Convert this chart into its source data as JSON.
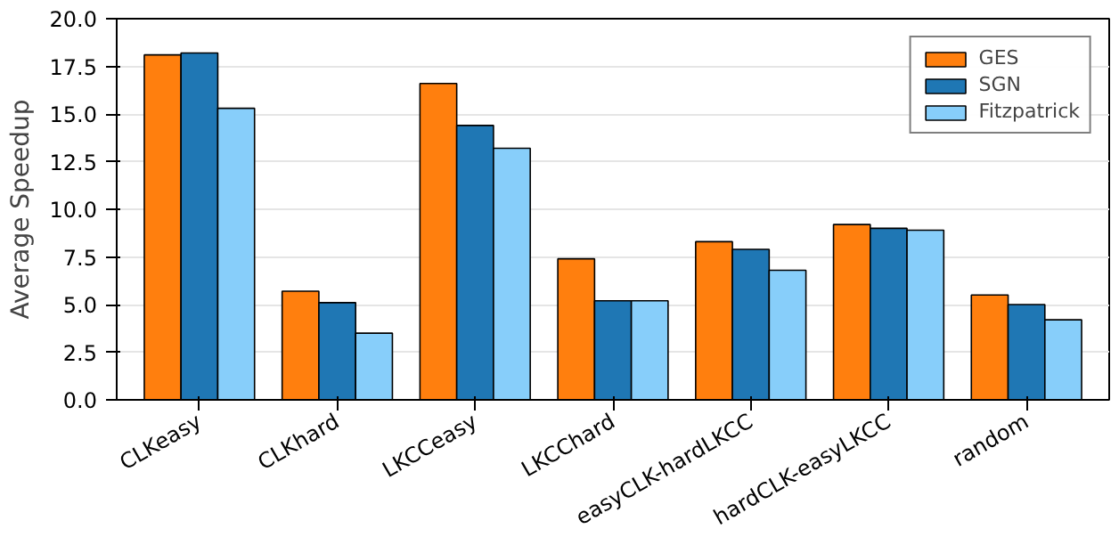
{
  "chart_data": {
    "type": "bar",
    "ylabel": "Average Speedup",
    "categories": [
      "CLKeasy",
      "CLKhard",
      "LKCCeasy",
      "LKCChard",
      "easyCLK-hardLKCC",
      "hardCLK-easyLKCC",
      "random"
    ],
    "series": [
      {
        "name": "GES",
        "color": "#ff7f0e",
        "values": [
          18.1,
          5.7,
          16.6,
          7.4,
          8.3,
          9.2,
          5.5
        ]
      },
      {
        "name": "SGN",
        "color": "#1f77b4",
        "values": [
          18.2,
          5.1,
          14.4,
          5.2,
          7.9,
          9.0,
          5.0
        ]
      },
      {
        "name": "Fitzpatrick",
        "color": "#87cefa",
        "values": [
          15.3,
          3.5,
          13.2,
          5.2,
          6.8,
          8.9,
          4.2
        ]
      }
    ],
    "ylim": [
      0,
      20
    ],
    "yticks": [
      {
        "value": 0,
        "label": "0.0"
      },
      {
        "value": 2.5,
        "label": "2.5"
      },
      {
        "value": 5,
        "label": "5.0"
      },
      {
        "value": 7.5,
        "label": "7.5"
      },
      {
        "value": 10,
        "label": "10.0"
      },
      {
        "value": 12.5,
        "label": "12.5"
      },
      {
        "value": 15,
        "label": "15.0"
      },
      {
        "value": 17.5,
        "label": "17.5"
      },
      {
        "value": 20,
        "label": "20.0"
      }
    ],
    "grid": "y",
    "legend": "top right"
  }
}
